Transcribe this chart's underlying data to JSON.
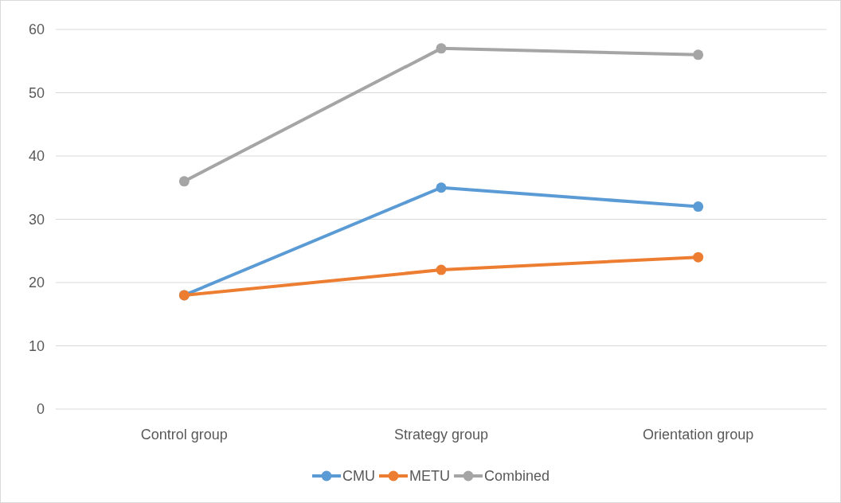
{
  "chart_data": {
    "type": "line",
    "categories": [
      "Control group",
      "Strategy group",
      "Orientation group"
    ],
    "series": [
      {
        "name": "CMU",
        "color": "#5b9bd5",
        "values": [
          18,
          35,
          32
        ]
      },
      {
        "name": "METU",
        "color": "#ed7d31",
        "values": [
          18,
          22,
          24
        ]
      },
      {
        "name": "Combined",
        "color": "#a5a5a5",
        "values": [
          36,
          57,
          56
        ]
      }
    ],
    "ylim": [
      0,
      60
    ],
    "yticks": [
      0,
      10,
      20,
      30,
      40,
      50,
      60
    ],
    "grid": "y",
    "legend": "bottom",
    "marker": "circle",
    "line_style": "solid"
  }
}
